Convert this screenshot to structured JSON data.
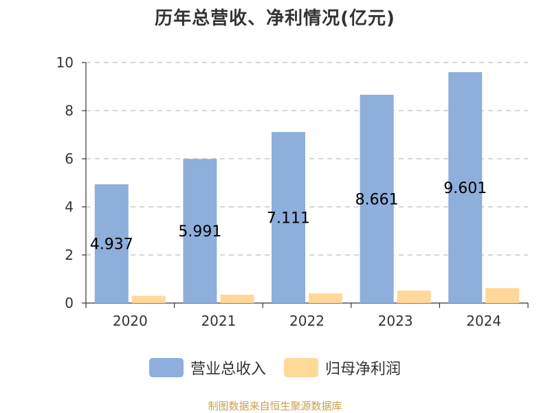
{
  "chart_data": {
    "type": "bar",
    "title": "历年总营收、净利情况(亿元)",
    "categories": [
      "2020",
      "2021",
      "2022",
      "2023",
      "2024"
    ],
    "series": [
      {
        "name": "营业总收入",
        "values": [
          4.937,
          5.991,
          7.111,
          8.661,
          9.601
        ],
        "color": "#8eaedb",
        "labels": [
          "4.937",
          "5.991",
          "7.111",
          "8.661",
          "9.601"
        ]
      },
      {
        "name": "归母净利润",
        "values": [
          0.3,
          0.35,
          0.4,
          0.52,
          0.62
        ],
        "color": "#ffd899"
      }
    ],
    "ylim": [
      0,
      10
    ],
    "yticks": [
      0,
      2,
      4,
      6,
      8,
      10
    ],
    "grid": true,
    "legend": "bottom"
  },
  "source": "制图数据来自恒生聚源数据库"
}
